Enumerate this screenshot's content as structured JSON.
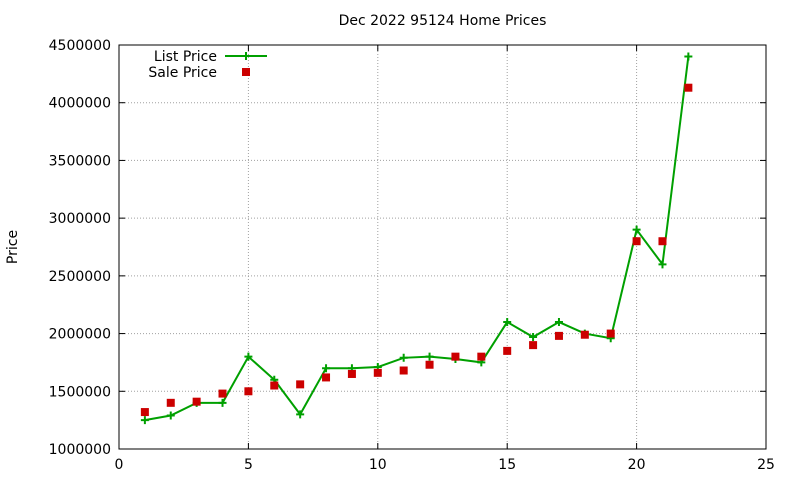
{
  "chart_data": {
    "type": "line",
    "title": "Dec 2022 95124 Home Prices",
    "xlabel": "",
    "ylabel": "Price",
    "xlim": [
      0,
      25
    ],
    "ylim": [
      1000000,
      4500000
    ],
    "xticks": [
      0,
      5,
      10,
      15,
      20,
      25
    ],
    "yticks": [
      1000000,
      1500000,
      2000000,
      2500000,
      3000000,
      3500000,
      4000000,
      4500000
    ],
    "grid": true,
    "legend_position": "top-left",
    "series": [
      {
        "name": "List Price",
        "style": "line+cross",
        "color": "#00a000",
        "x": [
          1,
          2,
          3,
          4,
          5,
          6,
          7,
          8,
          9,
          10,
          11,
          12,
          13,
          14,
          15,
          16,
          17,
          18,
          19,
          20,
          21,
          22
        ],
        "values": [
          1250000,
          1290000,
          1400000,
          1400000,
          1800000,
          1600000,
          1300000,
          1700000,
          1700000,
          1710000,
          1790000,
          1800000,
          1780000,
          1750000,
          2100000,
          1970000,
          2100000,
          2000000,
          1960000,
          2900000,
          2600000,
          4400000
        ]
      },
      {
        "name": "Sale Price",
        "style": "square",
        "color": "#cc0000",
        "x": [
          1,
          2,
          3,
          4,
          5,
          6,
          7,
          8,
          9,
          10,
          11,
          12,
          13,
          14,
          15,
          16,
          17,
          18,
          19,
          20,
          21,
          22
        ],
        "values": [
          1320000,
          1400000,
          1410000,
          1480000,
          1500000,
          1550000,
          1560000,
          1620000,
          1650000,
          1660000,
          1680000,
          1730000,
          1800000,
          1800000,
          1850000,
          1900000,
          1980000,
          1990000,
          2000000,
          2800000,
          2800000,
          4130000
        ]
      }
    ]
  }
}
